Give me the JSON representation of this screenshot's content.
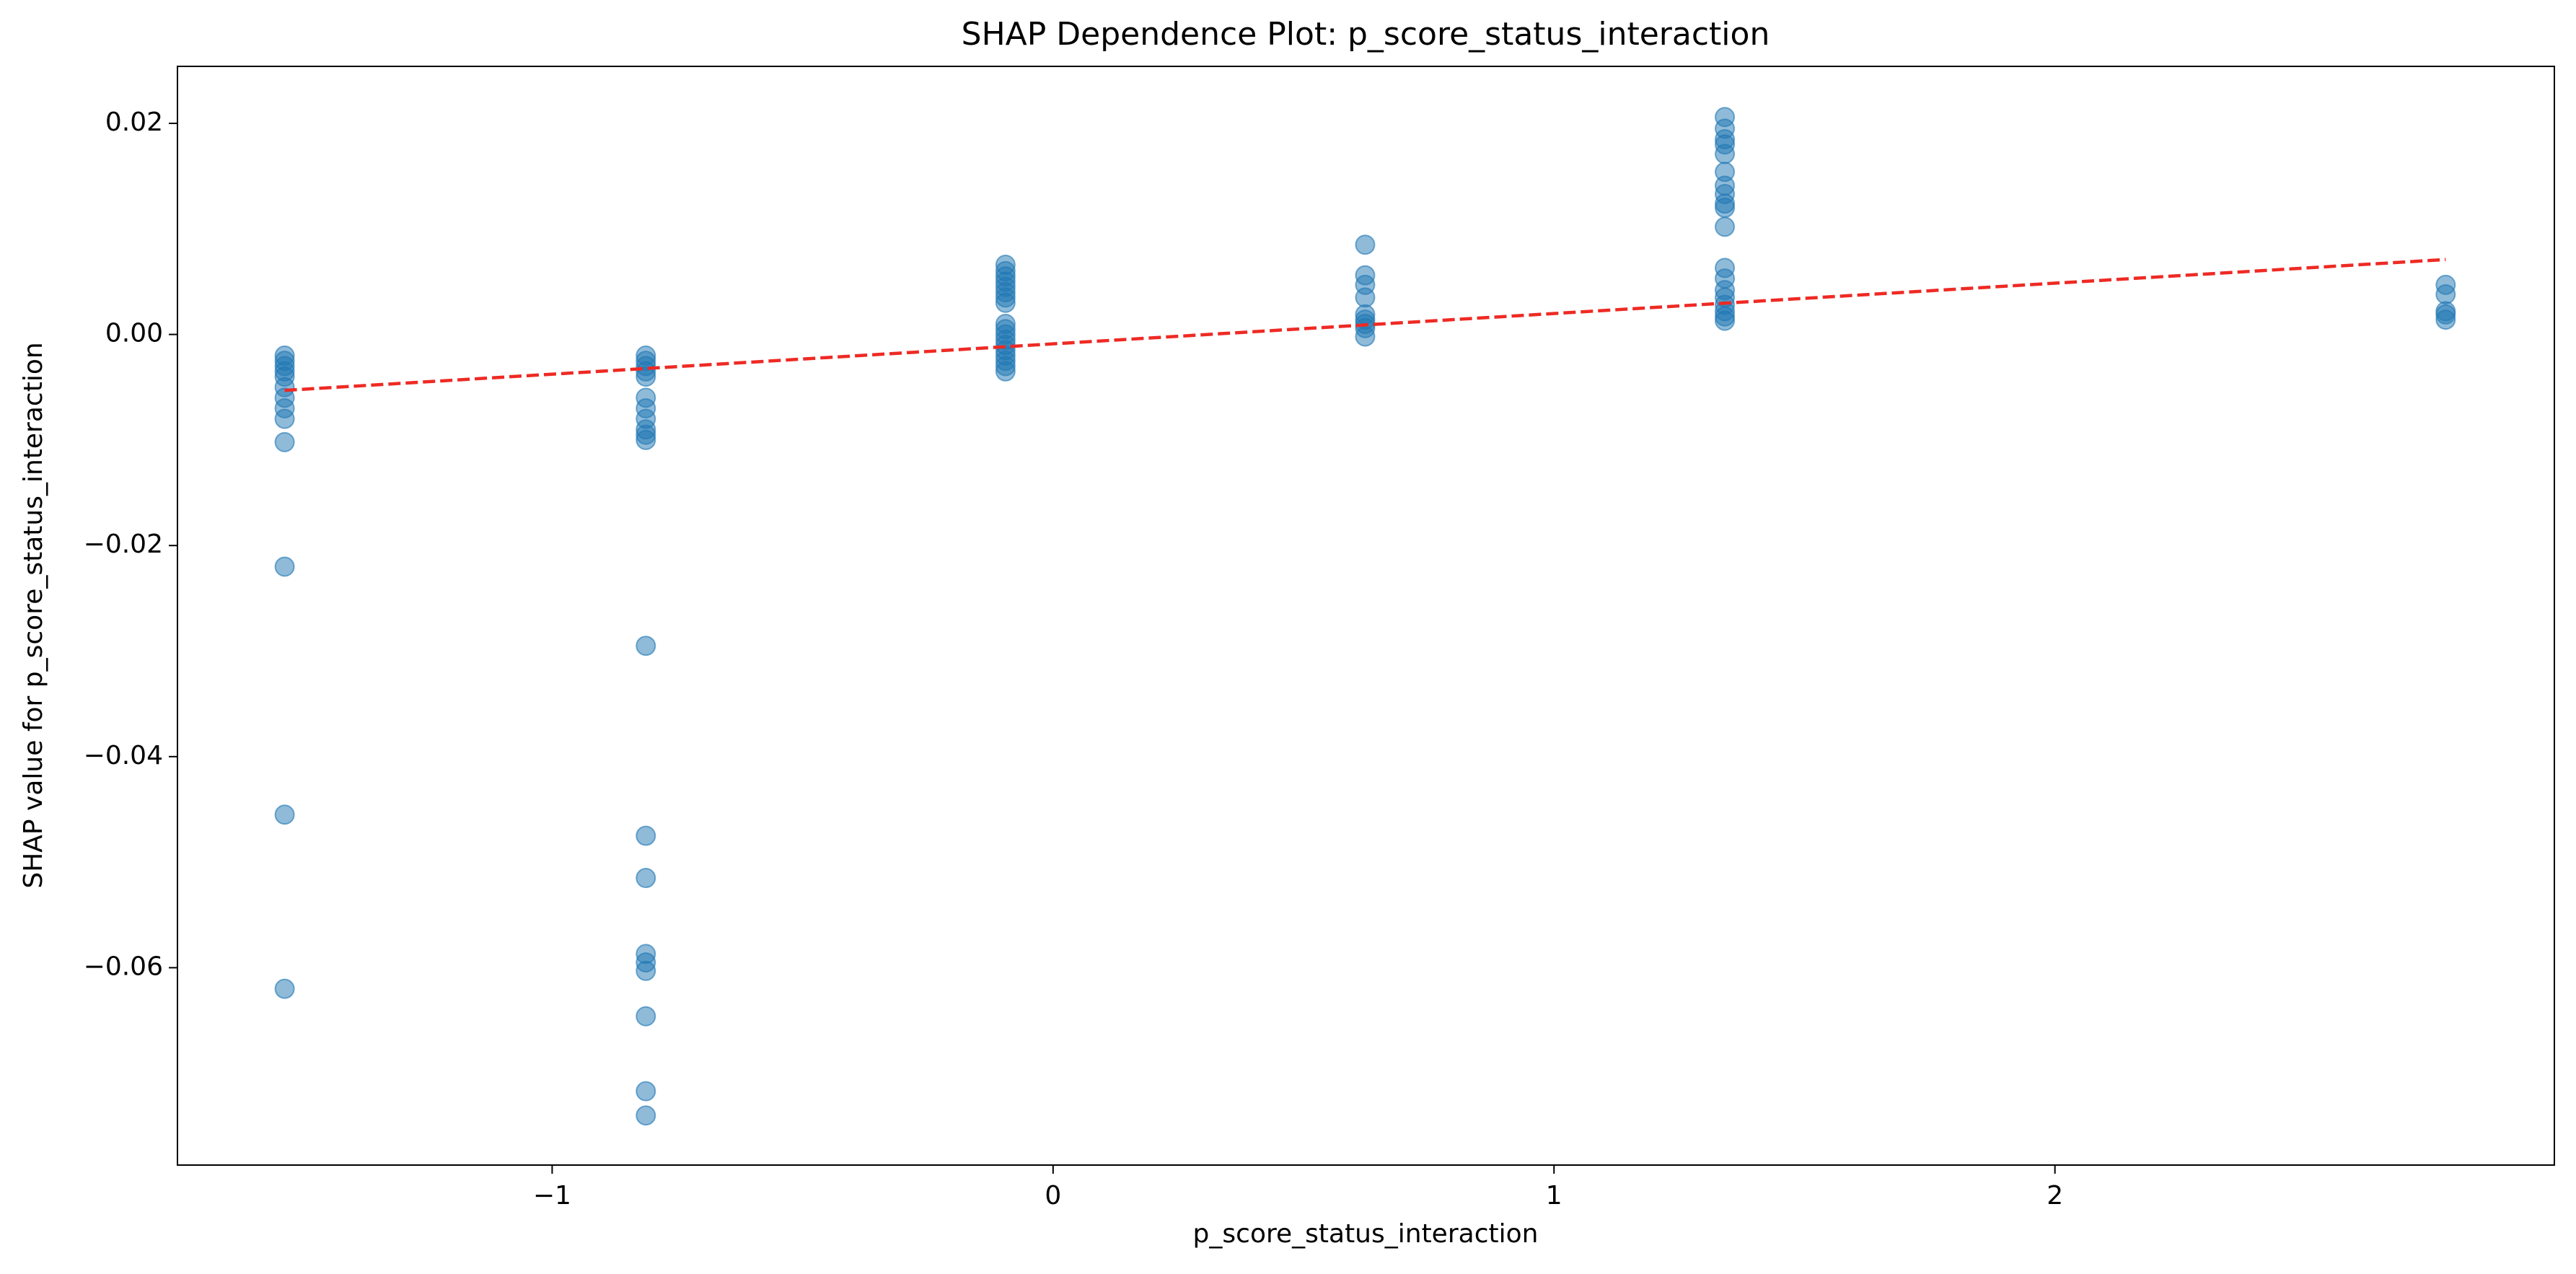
{
  "chart_data": {
    "type": "scatter",
    "title": "SHAP Dependence Plot: p_score_status_interaction",
    "x_label": "p_score_status_interaction",
    "y_label": "SHAP value for p_score_status_interaction",
    "color": "#1f77b4",
    "x": [
      -1.534,
      -1.534,
      -1.534,
      -1.534,
      -1.534,
      -1.534,
      -1.534,
      -1.534,
      -1.534,
      -1.534,
      -1.534,
      -1.534,
      -1.534,
      -0.813,
      -0.813,
      -0.813,
      -0.813,
      -0.813,
      -0.813,
      -0.813,
      -0.813,
      -0.813,
      -0.813,
      -0.813,
      -0.813,
      -0.813,
      -0.813,
      -0.813,
      -0.813,
      -0.813,
      -0.813,
      -0.813,
      -0.813,
      -0.095,
      -0.095,
      -0.095,
      -0.095,
      -0.095,
      -0.095,
      -0.095,
      -0.095,
      -0.095,
      -0.095,
      -0.095,
      -0.095,
      -0.095,
      -0.095,
      -0.095,
      -0.095,
      -0.095,
      -0.095,
      0.623,
      0.623,
      0.623,
      0.623,
      0.623,
      0.623,
      0.623,
      0.623,
      0.623,
      1.341,
      1.341,
      1.341,
      1.341,
      1.341,
      1.341,
      1.341,
      1.341,
      1.341,
      1.341,
      1.341,
      1.341,
      1.341,
      1.341,
      1.341,
      1.341,
      1.341,
      1.341,
      1.341,
      2.78,
      2.78,
      2.78,
      2.78,
      2.78
    ],
    "values": [
      -0.002,
      -0.0025,
      -0.003,
      -0.0035,
      -0.004,
      -0.005,
      -0.006,
      -0.007,
      -0.008,
      -0.0102,
      -0.022,
      -0.0455,
      -0.062,
      -0.002,
      -0.0025,
      -0.003,
      -0.0035,
      -0.004,
      -0.006,
      -0.007,
      -0.008,
      -0.009,
      -0.0095,
      -0.01,
      -0.0295,
      -0.0475,
      -0.0515,
      -0.0587,
      -0.0595,
      -0.0603,
      -0.0646,
      -0.0717,
      -0.074,
      0.0066,
      0.006,
      0.0055,
      0.005,
      0.0045,
      0.004,
      0.0035,
      0.003,
      0.001,
      0.0005,
      0,
      -0.0005,
      -0.001,
      -0.0015,
      -0.002,
      -0.0025,
      -0.003,
      -0.0035,
      0.0085,
      0.0056,
      0.0047,
      0.0035,
      0.0019,
      0.0014,
      0.001,
      0.0006,
      -0.0002,
      0.0206,
      0.0195,
      0.0185,
      0.018,
      0.0171,
      0.0154,
      0.0141,
      0.0133,
      0.0124,
      0.012,
      0.0102,
      0.0063,
      0.0053,
      0.0042,
      0.0035,
      0.0028,
      0.0022,
      0.0017,
      0.0013,
      0.0047,
      0.0038,
      0.0022,
      0.0019,
      0.0014
    ],
    "trend": {
      "x": [
        -1.534,
        2.78
      ],
      "values": [
        -0.0053,
        0.0071
      ],
      "color": "#ee2a24"
    },
    "xlim": [
      -1.748,
      2.997
    ],
    "ylim": [
      -0.0787,
      0.0254
    ],
    "xticks": [
      {
        "value": -1,
        "label": "−1"
      },
      {
        "value": 0,
        "label": "0"
      },
      1,
      2
    ],
    "yticks": [
      {
        "value": -0.06,
        "label": "−0.06"
      },
      {
        "value": -0.04,
        "label": "−0.04"
      },
      {
        "value": -0.02,
        "label": "−0.02"
      },
      {
        "value": 0,
        "label": "0.00"
      },
      0.02
    ],
    "grid": false
  }
}
